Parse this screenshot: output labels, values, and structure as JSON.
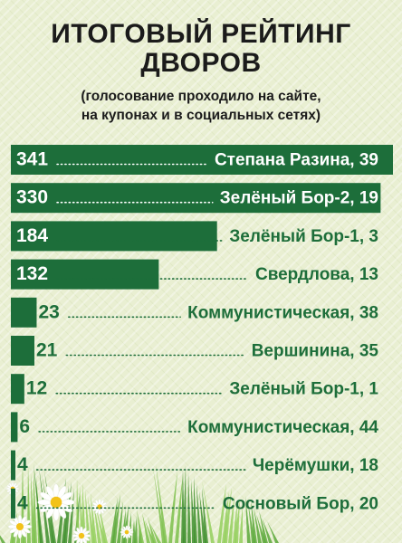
{
  "header": {
    "title_line1": "ИТОГОВЫЙ РЕЙТИНГ",
    "title_line2": "ДВОРОВ",
    "subtitle_line1": "(голосование проходило на сайте,",
    "subtitle_line2": "на купонах и в социальных сетях)"
  },
  "chart_data": {
    "type": "bar",
    "orientation": "horizontal",
    "title": "ИТОГОВЫЙ РЕЙТИНГ ДВОРОВ",
    "subtitle": "(голосование проходило на сайте, на купонах и в социальных сетях)",
    "categories": [
      "Степана Разина, 39",
      "Зелёный Бор-2, 19",
      "Зелёный Бор-1, 3",
      "Свердлова, 13",
      "Коммунистическая, 38",
      "Вершинина, 35",
      "Зелёный Бор-1, 1",
      "Коммунистическая, 44",
      "Черёмушки, 18",
      "Сосновый Бор, 20"
    ],
    "values": [
      341,
      330,
      184,
      132,
      23,
      21,
      12,
      6,
      4,
      4
    ],
    "grid": false,
    "legend": "none"
  },
  "colors": {
    "bar": "#1d6e3a",
    "label": "#1d6e3a",
    "value_on_bar": "#ffffff",
    "title": "#1b1b1b",
    "leader_dots": "#1d6e3a"
  },
  "decoration": {
    "icon": "daisy-flowers-grass-icon"
  }
}
